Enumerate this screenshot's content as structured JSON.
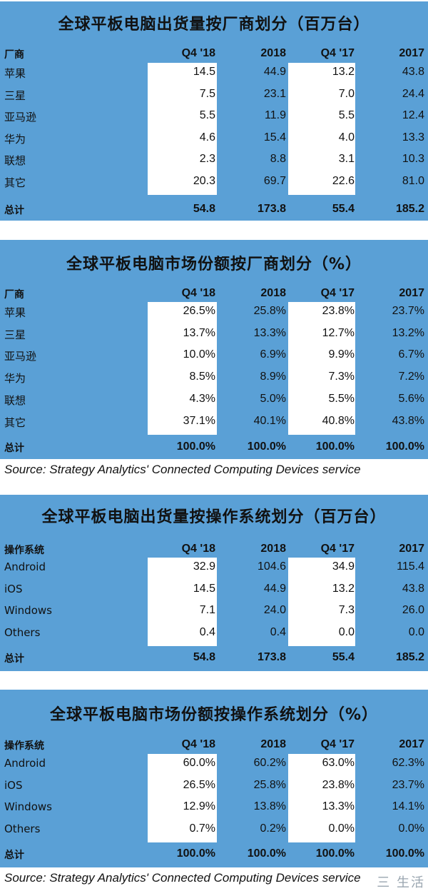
{
  "chart_data": [
    {
      "type": "table",
      "title": "全球平板电脑出货量按厂商划分（百万台）",
      "columns": [
        "厂商",
        "Q4 '18",
        "2018",
        "Q4 '17",
        "2017"
      ],
      "rows": [
        [
          "苹果",
          "14.5",
          "44.9",
          "13.2",
          "43.8"
        ],
        [
          "三星",
          "7.5",
          "23.1",
          "7.0",
          "24.4"
        ],
        [
          "亚马逊",
          "5.5",
          "11.9",
          "5.5",
          "12.4"
        ],
        [
          "华为",
          "4.6",
          "15.4",
          "4.0",
          "13.3"
        ],
        [
          "联想",
          "2.3",
          "8.8",
          "3.1",
          "10.3"
        ],
        [
          "其它",
          "20.3",
          "69.7",
          "22.6",
          "81.0"
        ]
      ],
      "total": [
        "总计",
        "54.8",
        "173.8",
        "55.4",
        "185.2"
      ]
    },
    {
      "type": "table",
      "title": "全球平板电脑市场份额按厂商划分（%）",
      "columns": [
        "厂商",
        "Q4 '18",
        "2018",
        "Q4 '17",
        "2017"
      ],
      "rows": [
        [
          "苹果",
          "26.5%",
          "25.8%",
          "23.8%",
          "23.7%"
        ],
        [
          "三星",
          "13.7%",
          "13.3%",
          "12.7%",
          "13.2%"
        ],
        [
          "亚马逊",
          "10.0%",
          "6.9%",
          "9.9%",
          "6.7%"
        ],
        [
          "华为",
          "8.5%",
          "8.9%",
          "7.3%",
          "7.2%"
        ],
        [
          "联想",
          "4.3%",
          "5.0%",
          "5.5%",
          "5.6%"
        ],
        [
          "其它",
          "37.1%",
          "40.1%",
          "40.8%",
          "43.8%"
        ]
      ],
      "total": [
        "总计",
        "100.0%",
        "100.0%",
        "100.0%",
        "100.0%"
      ],
      "source": "Source: Strategy Analytics' Connected Computing Devices service"
    },
    {
      "type": "table",
      "title": "全球平板电脑出货量按操作系统划分（百万台）",
      "columns": [
        "操作系统",
        "Q4 '18",
        "2018",
        "Q4 '17",
        "2017"
      ],
      "rows": [
        [
          "Android",
          "32.9",
          "104.6",
          "34.9",
          "115.4"
        ],
        [
          "iOS",
          "14.5",
          "44.9",
          "13.2",
          "43.8"
        ],
        [
          "Windows",
          "7.1",
          "24.0",
          "7.3",
          "26.0"
        ],
        [
          "Others",
          "0.4",
          "0.4",
          "0.0",
          "0.0"
        ]
      ],
      "total": [
        "总计",
        "54.8",
        "173.8",
        "55.4",
        "185.2"
      ]
    },
    {
      "type": "table",
      "title": "全球平板电脑市场份额按操作系统划分（%）",
      "columns": [
        "操作系统",
        "Q4 '18",
        "2018",
        "Q4 '17",
        "2017"
      ],
      "rows": [
        [
          "Android",
          "60.0%",
          "60.2%",
          "63.0%",
          "62.3%"
        ],
        [
          "iOS",
          "26.5%",
          "25.8%",
          "23.8%",
          "23.7%"
        ],
        [
          "Windows",
          "12.9%",
          "13.8%",
          "13.3%",
          "14.1%"
        ],
        [
          "Others",
          "0.7%",
          "0.2%",
          "0.0%",
          "0.0%"
        ]
      ],
      "total": [
        "总计",
        "100.0%",
        "100.0%",
        "100.0%",
        "100.0%"
      ],
      "source": "Source: Strategy Analytics' Connected Computing Devices service"
    }
  ],
  "watermark": "三 生活",
  "colors": {
    "band": "#5aa0d6",
    "cell": "#ffffff",
    "text": "#111111"
  }
}
